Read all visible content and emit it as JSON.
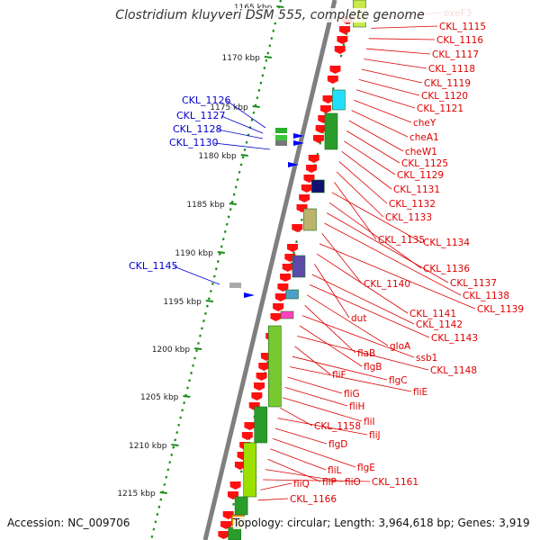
{
  "title": "Clostridium kluyveri DSM 555, complete genome",
  "footer": {
    "accession": "Accession: NC_009706",
    "summary": "Topology: circular; Length: 3,964,618 bp; Genes: 3,919"
  },
  "colors": {
    "backbone": "#7f7f7f",
    "tick": "#1a8c1a",
    "forward_label": "#0000cc",
    "reverse_label": "#dd0000",
    "gene_red": "#ff1010"
  },
  "kbp_ticks": [
    {
      "label": "1165 kbp"
    },
    {
      "label": "1170 kbp"
    },
    {
      "label": "1175 kbp"
    },
    {
      "label": "1180 kbp"
    },
    {
      "label": "1185 kbp"
    },
    {
      "label": "1190 kbp"
    },
    {
      "label": "1195 kbp"
    },
    {
      "label": "1200 kbp"
    },
    {
      "label": "1205 kbp"
    },
    {
      "label": "1210 kbp"
    },
    {
      "label": "1215 kbp"
    }
  ],
  "forward_labels": [
    {
      "label": "CKL_1126"
    },
    {
      "label": "CKL_1127"
    },
    {
      "label": "CKL_1128"
    },
    {
      "label": "CKL_1130"
    },
    {
      "label": "CKL_1145"
    }
  ],
  "reverse_labels": [
    {
      "label": "exeF3"
    },
    {
      "label": "CKL_1115"
    },
    {
      "label": "CKL_1116"
    },
    {
      "label": "CKL_1117"
    },
    {
      "label": "CKL_1118"
    },
    {
      "label": "CKL_1119"
    },
    {
      "label": "CKL_1120"
    },
    {
      "label": "CKL_1121"
    },
    {
      "label": "cheY"
    },
    {
      "label": "cheA1"
    },
    {
      "label": "cheW1"
    },
    {
      "label": "CKL_1125"
    },
    {
      "label": "CKL_1129"
    },
    {
      "label": "CKL_1131"
    },
    {
      "label": "CKL_1132"
    },
    {
      "label": "CKL_1133"
    },
    {
      "label": "CKL_1135"
    },
    {
      "label": "CKL_1134"
    },
    {
      "label": "CKL_1136"
    },
    {
      "label": "CKL_1137"
    },
    {
      "label": "CKL_1138"
    },
    {
      "label": "CKL_1140"
    },
    {
      "label": "CKL_1139"
    },
    {
      "label": "CKL_1141"
    },
    {
      "label": "dut"
    },
    {
      "label": "CKL_1142"
    },
    {
      "label": "CKL_1143"
    },
    {
      "label": "gloA"
    },
    {
      "label": "flaB"
    },
    {
      "label": "ssb1"
    },
    {
      "label": "flgB"
    },
    {
      "label": "CKL_1148"
    },
    {
      "label": "fliF"
    },
    {
      "label": "flgC"
    },
    {
      "label": "fliE"
    },
    {
      "label": "fliG"
    },
    {
      "label": "fliH"
    },
    {
      "label": "fliI"
    },
    {
      "label": "CKL_1158"
    },
    {
      "label": "fliJ"
    },
    {
      "label": "flgD"
    },
    {
      "label": "flgE"
    },
    {
      "label": "fliL"
    },
    {
      "label": "fliP"
    },
    {
      "label": "fliO"
    },
    {
      "label": "CKL_1161"
    },
    {
      "label": "fliQ"
    },
    {
      "label": "CKL_1166"
    }
  ]
}
